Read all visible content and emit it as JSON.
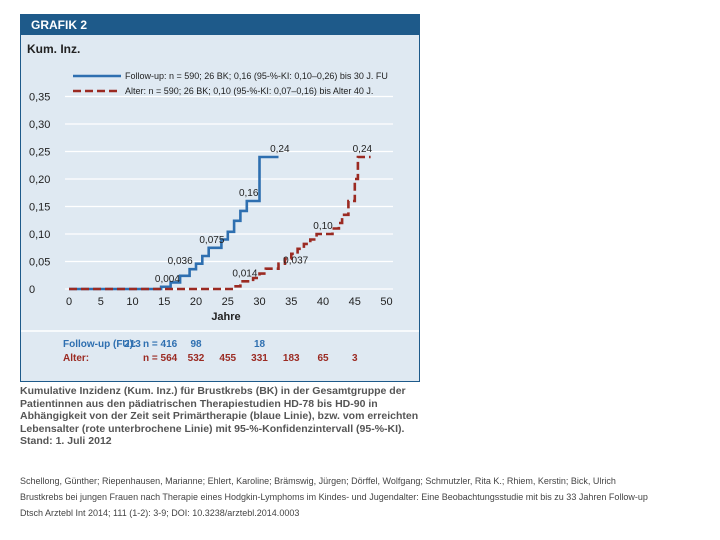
{
  "figure": {
    "header": "GRAFIK 2",
    "caption": "Kumulative Inzidenz (Kum. Inz.) für Brustkrebs (BK) in der Gesamtgruppe der Patientinnen aus den pädiatrischen Therapiestudien HD-78 bis HD-90 in Abhängigkeit von der Zeit seit Primärtherapie (blaue Linie), bzw. vom erreichten Lebensalter (rote unterbrochene Linie) mit 95-%-Konfidenzintervall (95-%-KI). Stand: 1. Juli 2012"
  },
  "chart_data": {
    "type": "line",
    "title": "Kum. Inz.",
    "xlabel": "Jahre",
    "ylabel": "Kum. Inz.",
    "xlim": [
      0,
      50
    ],
    "ylim": [
      0,
      0.35
    ],
    "x_ticks": [
      "0",
      "5",
      "10",
      "15",
      "20",
      "25",
      "30",
      "35",
      "40",
      "45",
      "50"
    ],
    "y_ticks": [
      "0",
      "0,05",
      "0,10",
      "0,15",
      "0,20",
      "0,25",
      "0,30",
      "0,35"
    ],
    "colors": {
      "fu": "#2e6fb0",
      "alter": "#9b2a22"
    },
    "series": [
      {
        "name": "Follow-up",
        "legend": "Follow-up:   n = 590; 26 BK; 0,16 (95-%-KI: 0,10–0,26) bis 30 J. FU",
        "style": "solid",
        "points": [
          [
            0,
            0
          ],
          [
            14.5,
            0
          ],
          [
            14.5,
            0.004
          ],
          [
            16,
            0.004
          ],
          [
            16,
            0.012
          ],
          [
            17.5,
            0.012
          ],
          [
            17.5,
            0.024
          ],
          [
            19,
            0.024
          ],
          [
            19,
            0.036
          ],
          [
            20,
            0.036
          ],
          [
            20,
            0.046
          ],
          [
            21,
            0.046
          ],
          [
            21,
            0.06
          ],
          [
            22,
            0.06
          ],
          [
            22,
            0.075
          ],
          [
            24,
            0.075
          ],
          [
            24,
            0.09
          ],
          [
            25,
            0.09
          ],
          [
            25,
            0.104
          ],
          [
            26,
            0.104
          ],
          [
            26,
            0.124
          ],
          [
            27,
            0.124
          ],
          [
            27,
            0.142
          ],
          [
            28,
            0.142
          ],
          [
            28,
            0.16
          ],
          [
            30,
            0.16
          ],
          [
            30,
            0.24
          ],
          [
            33,
            0.24
          ]
        ]
      },
      {
        "name": "Alter",
        "legend": "Alter:           n = 590; 26 BK; 0,10 (95-%-KI: 0,07–0,16) bis Alter 40 J.",
        "style": "dashed",
        "points": [
          [
            0,
            0
          ],
          [
            26,
            0
          ],
          [
            26,
            0.005
          ],
          [
            27,
            0.005
          ],
          [
            27,
            0.014
          ],
          [
            29,
            0.014
          ],
          [
            29,
            0.02
          ],
          [
            30,
            0.02
          ],
          [
            30,
            0.028
          ],
          [
            31,
            0.028
          ],
          [
            31,
            0.037
          ],
          [
            33,
            0.037
          ],
          [
            33,
            0.046
          ],
          [
            34,
            0.046
          ],
          [
            34,
            0.055
          ],
          [
            35,
            0.055
          ],
          [
            35,
            0.064
          ],
          [
            36,
            0.064
          ],
          [
            36,
            0.073
          ],
          [
            37,
            0.073
          ],
          [
            37,
            0.082
          ],
          [
            38,
            0.082
          ],
          [
            38,
            0.09
          ],
          [
            39,
            0.09
          ],
          [
            39,
            0.1
          ],
          [
            41.5,
            0.1
          ],
          [
            41.5,
            0.11
          ],
          [
            42.5,
            0.11
          ],
          [
            42.5,
            0.12
          ],
          [
            43,
            0.12
          ],
          [
            43,
            0.135
          ],
          [
            44,
            0.135
          ],
          [
            44,
            0.16
          ],
          [
            45,
            0.16
          ],
          [
            45,
            0.2
          ],
          [
            45.5,
            0.2
          ],
          [
            45.5,
            0.24
          ],
          [
            47.5,
            0.24
          ]
        ]
      }
    ],
    "annotations": [
      {
        "text": "0,004",
        "x": 15.5,
        "y": 0.004,
        "series": "fu"
      },
      {
        "text": "0,036",
        "x": 17.5,
        "y": 0.036,
        "series": "fu"
      },
      {
        "text": "0,075",
        "x": 22.5,
        "y": 0.075,
        "series": "fu"
      },
      {
        "text": "0,16",
        "x": 28.3,
        "y": 0.16,
        "series": "fu"
      },
      {
        "text": "0,24",
        "x": 33.2,
        "y": 0.24,
        "series": "fu"
      },
      {
        "text": "0,014",
        "x": 27.7,
        "y": 0.014,
        "series": "alter"
      },
      {
        "text": "0,037",
        "x": 35.7,
        "y": 0.037,
        "series": "alter"
      },
      {
        "text": "0,10",
        "x": 40,
        "y": 0.1,
        "series": "alter"
      },
      {
        "text": "0,24",
        "x": 46.2,
        "y": 0.24,
        "series": "alter"
      }
    ],
    "risk_table": {
      "rows": [
        {
          "label": "Follow-up (FU):",
          "n_label": "n = 416",
          "values": [
            "213",
            "98",
            "18"
          ],
          "x": [
            10,
            20,
            30
          ],
          "series": "fu"
        },
        {
          "label": "Alter:",
          "n_label": "n = 564",
          "values": [
            "532",
            "455",
            "331",
            "183",
            "65",
            "3"
          ],
          "x": [
            20,
            25,
            30,
            35,
            40,
            45
          ],
          "series": "alter"
        }
      ]
    }
  },
  "citation": {
    "line1": "Schellong, Günther; Riepenhausen, Marianne; Ehlert, Karoline; Brämswig, Jürgen; Dörffel, Wolfgang; Schmutzler, Rita K.; Rhiem, Kerstin; Bick, Ulrich",
    "line2": "Brustkrebs bei jungen Frauen nach Therapie eines Hodgkin-Lymphoms im Kindes- und Jugendalter: Eine Beobachtungsstudie mit bis zu 33 Jahren Follow-up",
    "line3": "Dtsch Arztebl Int 2014; 111 (1-2): 3-9; DOI: 10.3238/arztebl.2014.0003"
  }
}
